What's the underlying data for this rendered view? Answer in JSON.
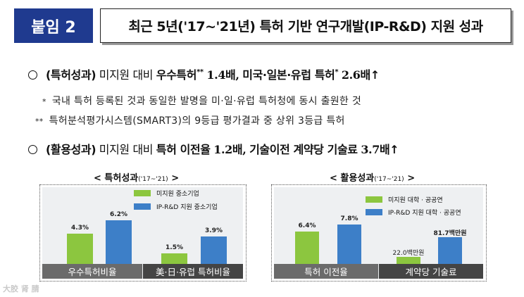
{
  "header": {
    "badge": "붙임 2",
    "title": "최근 5년('17~'21년) 특허 기반 연구개발(IP-R&D) 지원 성과"
  },
  "bullet1": {
    "label": "(특허성과)",
    "text1": "미지원 대비",
    "text2": "우수특허",
    "mark1": "**",
    "text3": "1.4배,",
    "text4": "미국·일본·유럽 특허",
    "mark2": "*",
    "text5": "2.6배",
    "arrow": "↑"
  },
  "notes": [
    {
      "mark": "*",
      "text": "국내 특허 등록된 것과 동일한 발명을 미·일·유럽 특허청에 동시 출원한 것"
    },
    {
      "mark": "**",
      "text": "특허분석평가시스템(SMART3)의 9등급 평가결과 중 상위 3등급 특허"
    }
  ],
  "bullet2": {
    "label": "(활용성과)",
    "text1": "미지원 대비",
    "text2": "특허 이전율",
    "text3": "1.2배,",
    "text4": "기술이전 계약당 기술료",
    "text5": "3.7배",
    "arrow": "↑"
  },
  "watermark": "大胶 肾 腈",
  "colors": {
    "unsupported": "#8cc63f",
    "supported": "#3d7fc8",
    "badge": "#1f3a8f"
  },
  "chart_data": [
    {
      "type": "bar",
      "title": "< 특허성과",
      "period": "('17~'21)",
      "title_end": ">",
      "legend": [
        "미지원 중소기업",
        "IP-R&D 지원 중소기업"
      ],
      "categories": [
        "우수특허비율",
        "美·日·유럽 특허비율"
      ],
      "series": [
        {
          "name": "미지원 중소기업",
          "values": [
            4.3,
            1.5
          ],
          "labels": [
            "4.3%",
            "1.5%"
          ]
        },
        {
          "name": "IP-R&D 지원 중소기업",
          "values": [
            6.2,
            3.9
          ],
          "labels": [
            "6.2%",
            "3.9%"
          ]
        }
      ],
      "ylim": [
        0,
        8
      ]
    },
    {
      "type": "bar",
      "title": "< 활용성과",
      "period": "('17~'21)",
      "title_end": ">",
      "legend": [
        "미지원 대학 · 공공연",
        "IP-R&D 지원 대학 · 공공연"
      ],
      "categories": [
        "특허 이전율",
        "계약당 기술료"
      ],
      "series": [
        {
          "name": "미지원 대학 · 공공연",
          "values": [
            6.4,
            22.0
          ],
          "labels": [
            "6.4%",
            "22.0백만원"
          ]
        },
        {
          "name": "IP-R&D 지원 대학 · 공공연",
          "values": [
            7.8,
            81.7
          ],
          "labels": [
            "7.8%",
            "81.7백만원"
          ]
        }
      ],
      "ylim_by_category": [
        [
          0,
          10
        ],
        [
          0,
          100
        ]
      ]
    }
  ]
}
